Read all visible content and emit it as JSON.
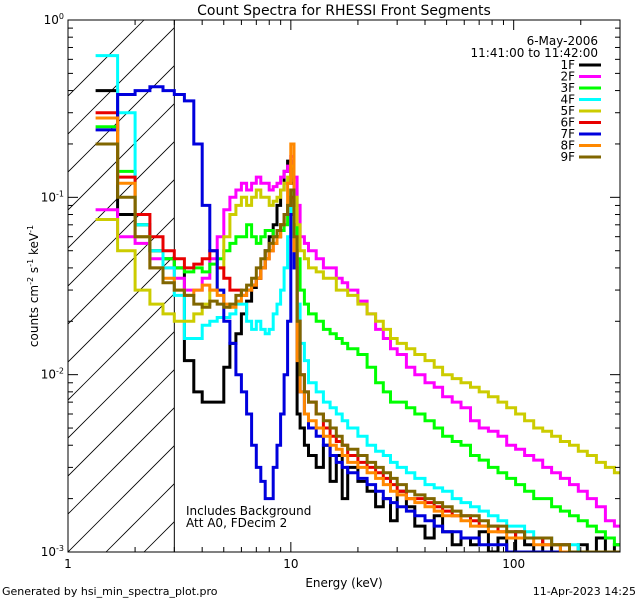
{
  "chart_data": {
    "type": "line",
    "title": "Count Spectra for RHESSI Front Segments",
    "xlabel": "Energy (keV)",
    "ylabel_parts": {
      "base": "counts cm",
      "exp1": "-2",
      "mid": " s",
      "exp2": "-1",
      "mid2": " keV",
      "exp3": "-1"
    },
    "x_scale": "log",
    "y_scale": "log",
    "xlim": [
      1,
      300
    ],
    "ylim": [
      0.001,
      1
    ],
    "x_ticks": [
      {
        "value": 1,
        "label": "1"
      },
      {
        "value": 10,
        "label": "10"
      },
      {
        "value": 100,
        "label": "100"
      }
    ],
    "y_ticks": [
      {
        "value": 1,
        "base": "10",
        "exp": "0"
      },
      {
        "value": 0.1,
        "base": "10",
        "exp": "-1"
      },
      {
        "value": 0.01,
        "base": "10",
        "exp": "-2"
      },
      {
        "value": 0.001,
        "base": "10",
        "exp": "-3"
      }
    ],
    "date": "6-May-2006",
    "time_range": "11:41:00 to 11:42:00",
    "annotation_lines": [
      "Includes Background",
      "Att A0, FDecim 2"
    ],
    "excluded_region_kev": [
      1,
      3
    ],
    "energy_edges": [
      1.33,
      1.67,
      2.0,
      2.33,
      2.67,
      3.0,
      3.33,
      3.67,
      4.0,
      4.33,
      4.67,
      5.0,
      5.33,
      5.67,
      6.0,
      6.33,
      6.67,
      7.0,
      7.33,
      7.67,
      8.0,
      8.33,
      8.67,
      9.0,
      9.33,
      9.67,
      10.0,
      10.33,
      10.67,
      11.0,
      11.5,
      12.0,
      13.0,
      14.0,
      15.0,
      16.0,
      17.0,
      18.0,
      20.0,
      22.0,
      24.0,
      26.0,
      28.0,
      30.0,
      33.0,
      36.0,
      40.0,
      44.0,
      48.0,
      53.0,
      58.0,
      64.0,
      70.0,
      77.0,
      85.0,
      93.0,
      102.0,
      112.0,
      123.0,
      135.0,
      148.0,
      162.0,
      178.0,
      195.0,
      214.0,
      235.0,
      258.0,
      283.0,
      300.0
    ],
    "series": [
      {
        "name": "1F",
        "color": "#000000",
        "values": [
          0.4,
          0.08,
          0.07,
          0.05,
          0.045,
          0.04,
          0.012,
          0.008,
          0.007,
          0.007,
          0.007,
          0.011,
          0.015,
          0.017,
          0.022,
          0.026,
          0.031,
          0.035,
          0.04,
          0.05,
          0.06,
          0.07,
          0.09,
          0.11,
          0.14,
          0.16,
          0.12,
          0.04,
          0.006,
          0.005,
          0.004,
          0.0035,
          0.003,
          0.004,
          0.0025,
          0.0035,
          0.002,
          0.003,
          0.0025,
          0.0022,
          0.0018,
          0.002,
          0.0015,
          0.0022,
          0.0018,
          0.0014,
          0.0012,
          0.0016,
          0.0013,
          0.0011,
          0.0012,
          0.0011,
          0.0013,
          0.001,
          0.0012,
          0.001,
          0.0013,
          0.0011,
          0.001,
          0.0012,
          0.001,
          0.0011,
          0.001,
          0.0011,
          0.001,
          0.0012,
          0.001,
          0.0011
        ]
      },
      {
        "name": "2F",
        "color": "#ff00ff",
        "values": [
          0.085,
          0.06,
          0.055,
          0.045,
          0.04,
          0.035,
          0.03,
          0.03,
          0.035,
          0.045,
          0.06,
          0.085,
          0.1,
          0.11,
          0.12,
          0.11,
          0.12,
          0.13,
          0.12,
          0.12,
          0.11,
          0.115,
          0.12,
          0.13,
          0.14,
          0.15,
          0.17,
          0.13,
          0.09,
          0.06,
          0.055,
          0.05,
          0.045,
          0.04,
          0.04,
          0.035,
          0.033,
          0.03,
          0.026,
          0.022,
          0.018,
          0.016,
          0.014,
          0.013,
          0.011,
          0.01,
          0.009,
          0.0085,
          0.0075,
          0.007,
          0.0065,
          0.0055,
          0.005,
          0.0048,
          0.0045,
          0.004,
          0.0038,
          0.0035,
          0.0033,
          0.003,
          0.0028,
          0.0026,
          0.0024,
          0.0022,
          0.002,
          0.0018,
          0.0015,
          0.0014
        ]
      },
      {
        "name": "3F",
        "color": "#00ff00",
        "values": [
          0.25,
          0.14,
          0.07,
          0.05,
          0.045,
          0.04,
          0.038,
          0.04,
          0.038,
          0.042,
          0.045,
          0.05,
          0.055,
          0.06,
          0.06,
          0.07,
          0.06,
          0.055,
          0.06,
          0.065,
          0.065,
          0.06,
          0.06,
          0.065,
          0.07,
          0.08,
          0.11,
          0.07,
          0.045,
          0.03,
          0.025,
          0.022,
          0.02,
          0.018,
          0.017,
          0.016,
          0.015,
          0.014,
          0.013,
          0.011,
          0.009,
          0.008,
          0.007,
          0.007,
          0.0065,
          0.006,
          0.0055,
          0.005,
          0.0045,
          0.0042,
          0.004,
          0.0035,
          0.0033,
          0.003,
          0.0028,
          0.0026,
          0.0024,
          0.0022,
          0.002,
          0.002,
          0.0018,
          0.0017,
          0.0016,
          0.0015,
          0.0014,
          0.0013,
          0.0012,
          0.0011
        ]
      },
      {
        "name": "4F",
        "color": "#00ffff",
        "values": [
          0.63,
          0.3,
          0.07,
          0.05,
          0.04,
          0.028,
          0.016,
          0.016,
          0.019,
          0.02,
          0.021,
          0.021,
          0.022,
          0.025,
          0.025,
          0.02,
          0.018,
          0.02,
          0.018,
          0.017,
          0.018,
          0.022,
          0.025,
          0.03,
          0.04,
          0.06,
          0.09,
          0.05,
          0.025,
          0.015,
          0.012,
          0.009,
          0.008,
          0.007,
          0.0065,
          0.006,
          0.0055,
          0.005,
          0.0045,
          0.004,
          0.0037,
          0.0035,
          0.0032,
          0.003,
          0.0028,
          0.0026,
          0.0024,
          0.0023,
          0.0022,
          0.002,
          0.0019,
          0.0018,
          0.0017,
          0.0016,
          0.0015,
          0.0014,
          0.0014,
          0.0013,
          0.0012,
          0.0012,
          0.0011,
          0.0011,
          0.0011,
          0.001,
          0.001,
          0.001,
          0.001,
          0.001
        ]
      },
      {
        "name": "5F",
        "color": "#cccc00",
        "values": [
          0.075,
          0.05,
          0.03,
          0.025,
          0.022,
          0.02,
          0.02,
          0.022,
          0.025,
          0.03,
          0.04,
          0.06,
          0.08,
          0.09,
          0.1,
          0.09,
          0.1,
          0.11,
          0.1,
          0.1,
          0.09,
          0.095,
          0.1,
          0.11,
          0.12,
          0.13,
          0.15,
          0.1,
          0.07,
          0.05,
          0.045,
          0.04,
          0.038,
          0.035,
          0.035,
          0.03,
          0.03,
          0.028,
          0.025,
          0.022,
          0.02,
          0.018,
          0.016,
          0.015,
          0.014,
          0.013,
          0.012,
          0.011,
          0.01,
          0.0095,
          0.009,
          0.0085,
          0.008,
          0.0075,
          0.007,
          0.0065,
          0.006,
          0.0055,
          0.005,
          0.0048,
          0.0045,
          0.0042,
          0.004,
          0.0037,
          0.0035,
          0.0032,
          0.003,
          0.0028
        ]
      },
      {
        "name": "6F",
        "color": "#e80000",
        "values": [
          0.3,
          0.13,
          0.08,
          0.06,
          0.05,
          0.045,
          0.04,
          0.042,
          0.045,
          0.05,
          0.04,
          0.035,
          0.03,
          0.03,
          0.028,
          0.03,
          0.032,
          0.035,
          0.04,
          0.045,
          0.05,
          0.055,
          0.06,
          0.07,
          0.08,
          0.09,
          0.1,
          0.05,
          0.02,
          0.01,
          0.008,
          0.007,
          0.006,
          0.005,
          0.0045,
          0.0042,
          0.004,
          0.0035,
          0.0032,
          0.003,
          0.0028,
          0.0026,
          0.0024,
          0.0022,
          0.002,
          0.002,
          0.0019,
          0.0018,
          0.0017,
          0.0016,
          0.0016,
          0.0015,
          0.0014,
          0.0014,
          0.0013,
          0.0013,
          0.0012,
          0.0012,
          0.0012,
          0.0011,
          0.0011,
          0.0011,
          0.001,
          0.001,
          0.001,
          0.001,
          0.001,
          0.001
        ]
      },
      {
        "name": "7F",
        "color": "#0000dd",
        "values": [
          0.24,
          0.38,
          0.4,
          0.42,
          0.4,
          0.38,
          0.35,
          0.2,
          0.09,
          0.05,
          0.03,
          0.02,
          0.015,
          0.01,
          0.008,
          0.006,
          0.004,
          0.003,
          0.0025,
          0.002,
          0.002,
          0.003,
          0.004,
          0.006,
          0.01,
          0.02,
          0.08,
          0.04,
          0.015,
          0.008,
          0.006,
          0.005,
          0.0045,
          0.004,
          0.0035,
          0.0032,
          0.003,
          0.0028,
          0.0026,
          0.0024,
          0.0022,
          0.002,
          0.0019,
          0.0018,
          0.0017,
          0.0016,
          0.0015,
          0.0014,
          0.0013,
          0.0013,
          0.0012,
          0.0012,
          0.0011,
          0.0011,
          0.0011,
          0.001,
          0.001,
          0.001,
          0.001,
          0.001,
          0.001,
          0.001,
          0.001,
          0.001,
          0.001,
          0.001,
          0.001,
          0.001
        ]
      },
      {
        "name": "8F",
        "color": "#ff8800",
        "values": [
          0.28,
          0.12,
          0.06,
          0.04,
          0.035,
          0.03,
          0.028,
          0.03,
          0.032,
          0.03,
          0.028,
          0.025,
          0.024,
          0.026,
          0.028,
          0.03,
          0.032,
          0.035,
          0.04,
          0.045,
          0.05,
          0.055,
          0.06,
          0.07,
          0.08,
          0.12,
          0.2,
          0.05,
          0.012,
          0.008,
          0.006,
          0.0055,
          0.005,
          0.0045,
          0.004,
          0.0038,
          0.0035,
          0.0032,
          0.003,
          0.0028,
          0.0026,
          0.0024,
          0.0022,
          0.0021,
          0.002,
          0.0019,
          0.0018,
          0.0017,
          0.0016,
          0.0016,
          0.0015,
          0.0014,
          0.0014,
          0.0013,
          0.0013,
          0.0012,
          0.0012,
          0.0012,
          0.0011,
          0.0011,
          0.0011,
          0.001,
          0.001,
          0.001,
          0.001,
          0.001,
          0.001,
          0.001
        ]
      },
      {
        "name": "9F",
        "color": "#806600",
        "values": [
          0.2,
          0.1,
          0.06,
          0.04,
          0.033,
          0.03,
          0.028,
          0.025,
          0.024,
          0.026,
          0.025,
          0.024,
          0.025,
          0.028,
          0.03,
          0.032,
          0.035,
          0.04,
          0.045,
          0.05,
          0.055,
          0.06,
          0.065,
          0.07,
          0.08,
          0.09,
          0.11,
          0.06,
          0.02,
          0.01,
          0.008,
          0.007,
          0.006,
          0.0055,
          0.005,
          0.0045,
          0.004,
          0.0038,
          0.0035,
          0.0032,
          0.003,
          0.0028,
          0.0026,
          0.0024,
          0.0022,
          0.0021,
          0.002,
          0.0019,
          0.0018,
          0.0017,
          0.0016,
          0.0016,
          0.0015,
          0.0014,
          0.0014,
          0.0013,
          0.0013,
          0.0012,
          0.0012,
          0.0012,
          0.0011,
          0.0011,
          0.001,
          0.001,
          0.001,
          0.001,
          0.001,
          0.001
        ]
      }
    ]
  },
  "footer": {
    "left": "Generated by hsi_min_spectra_plot.pro",
    "right": "11-Apr-2023 14:25"
  }
}
